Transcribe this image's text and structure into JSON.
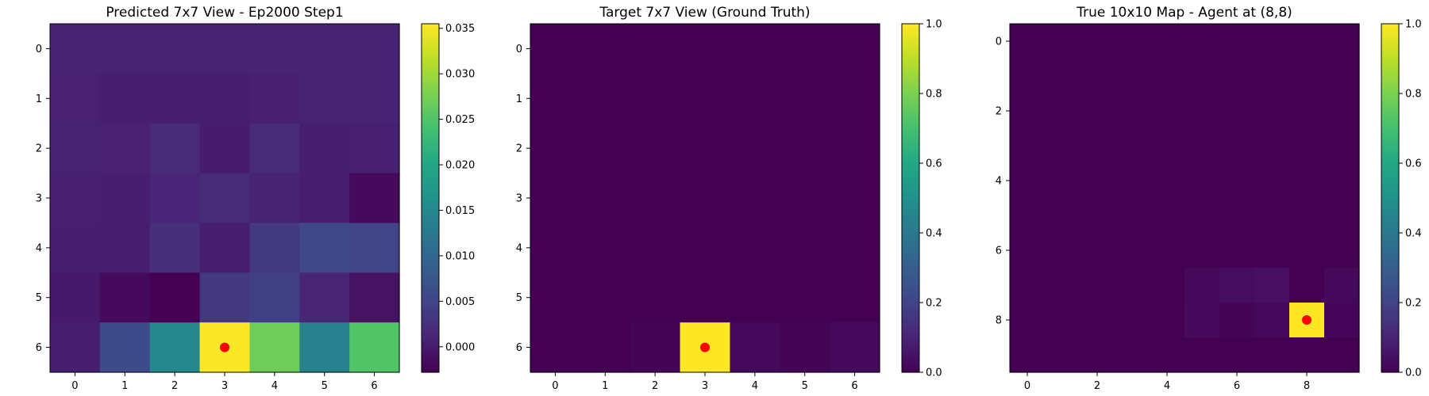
{
  "chart_data": [
    {
      "type": "heatmap",
      "title": "Predicted 7x7 View - Ep2000 Step1",
      "xlabel": "",
      "ylabel": "",
      "rows": 7,
      "cols": 7,
      "x_ticks": [
        0,
        1,
        2,
        3,
        4,
        5,
        6
      ],
      "y_ticks": [
        0,
        1,
        2,
        3,
        4,
        5,
        6
      ],
      "values": [
        [
          0.0009,
          0.0009,
          0.0009,
          0.0009,
          0.0009,
          0.0009,
          0.0009
        ],
        [
          0.0007,
          0.0004,
          0.0005,
          0.0003,
          0.0006,
          0.0008,
          0.0009
        ],
        [
          0.0008,
          0.0007,
          0.0017,
          0.0002,
          0.0017,
          0.0005,
          0.0006
        ],
        [
          0.0006,
          0.0004,
          0.0012,
          0.0019,
          0.0009,
          0.0003,
          -0.0018
        ],
        [
          0.0005,
          0.0003,
          0.0023,
          0.0004,
          0.0036,
          0.0055,
          0.005
        ],
        [
          -0.0002,
          -0.0018,
          -0.0028,
          0.0034,
          0.0044,
          0.0011,
          -0.0009
        ],
        [
          0.0005,
          0.006,
          0.015,
          0.0353,
          0.027,
          0.014,
          0.025
        ]
      ],
      "vmin": -0.0028,
      "vmax": 0.0355,
      "colorbar_ticks": [
        {
          "value": 0.0,
          "label": "0.000"
        },
        {
          "value": 0.005,
          "label": "0.005"
        },
        {
          "value": 0.01,
          "label": "0.010"
        },
        {
          "value": 0.015,
          "label": "0.015"
        },
        {
          "value": 0.02,
          "label": "0.020"
        },
        {
          "value": 0.025,
          "label": "0.025"
        },
        {
          "value": 0.03,
          "label": "0.030"
        },
        {
          "value": 0.035,
          "label": "0.035"
        }
      ],
      "colormap": "viridis",
      "marker": {
        "x": 3,
        "y": 6,
        "color": "#ff0000"
      }
    },
    {
      "type": "heatmap",
      "title": "Target 7x7 View (Ground Truth)",
      "xlabel": "",
      "ylabel": "",
      "rows": 7,
      "cols": 7,
      "x_ticks": [
        0,
        1,
        2,
        3,
        4,
        5,
        6
      ],
      "y_ticks": [
        0,
        1,
        2,
        3,
        4,
        5,
        6
      ],
      "values": [
        [
          0,
          0,
          0,
          0,
          0,
          0,
          0
        ],
        [
          0,
          0,
          0,
          0,
          0,
          0,
          0
        ],
        [
          0,
          0,
          0,
          0,
          0,
          0,
          0
        ],
        [
          0,
          0,
          0,
          0,
          0,
          0,
          0
        ],
        [
          0,
          0,
          0,
          0,
          0,
          0,
          0
        ],
        [
          0,
          0,
          0,
          0,
          0,
          0,
          0
        ],
        [
          0,
          0,
          0.01,
          1.0,
          0.02,
          0.01,
          0.025
        ]
      ],
      "vmin": 0,
      "vmax": 1,
      "colorbar_ticks": [
        {
          "value": 0.0,
          "label": "0.0"
        },
        {
          "value": 0.2,
          "label": "0.2"
        },
        {
          "value": 0.4,
          "label": "0.4"
        },
        {
          "value": 0.6,
          "label": "0.6"
        },
        {
          "value": 0.8,
          "label": "0.8"
        },
        {
          "value": 1.0,
          "label": "1.0"
        }
      ],
      "colormap": "viridis",
      "marker": {
        "x": 3,
        "y": 6,
        "color": "#ff0000"
      }
    },
    {
      "type": "heatmap",
      "title": "True 10x10 Map - Agent at (8,8)",
      "xlabel": "",
      "ylabel": "",
      "rows": 10,
      "cols": 10,
      "x_ticks": [
        0,
        2,
        4,
        6,
        8
      ],
      "y_ticks": [
        0,
        2,
        4,
        6,
        8
      ],
      "values": [
        [
          0,
          0,
          0,
          0,
          0,
          0,
          0,
          0,
          0,
          0
        ],
        [
          0,
          0,
          0,
          0,
          0,
          0,
          0,
          0,
          0,
          0
        ],
        [
          0,
          0,
          0,
          0,
          0,
          0,
          0,
          0,
          0,
          0
        ],
        [
          0,
          0,
          0,
          0,
          0,
          0,
          0,
          0,
          0,
          0
        ],
        [
          0,
          0,
          0,
          0,
          0,
          0,
          0,
          0,
          0,
          0
        ],
        [
          0,
          0,
          0,
          0,
          0,
          0,
          0,
          0,
          0,
          0
        ],
        [
          0,
          0,
          0,
          0,
          0,
          0,
          0,
          0,
          0,
          0
        ],
        [
          0,
          0,
          0,
          0,
          0,
          0.02,
          0.035,
          0.04,
          0,
          0.02
        ],
        [
          0,
          0,
          0,
          0,
          0,
          0.025,
          0.01,
          0.02,
          1.0,
          0.015
        ],
        [
          0,
          0,
          0,
          0,
          0,
          0,
          0,
          0,
          0,
          0
        ]
      ],
      "vmin": 0,
      "vmax": 1,
      "colorbar_ticks": [
        {
          "value": 0.0,
          "label": "0.0"
        },
        {
          "value": 0.2,
          "label": "0.2"
        },
        {
          "value": 0.4,
          "label": "0.4"
        },
        {
          "value": 0.6,
          "label": "0.6"
        },
        {
          "value": 0.8,
          "label": "0.8"
        },
        {
          "value": 1.0,
          "label": "1.0"
        }
      ],
      "colormap": "viridis",
      "marker": {
        "x": 8,
        "y": 8,
        "color": "#ff0000"
      }
    }
  ]
}
